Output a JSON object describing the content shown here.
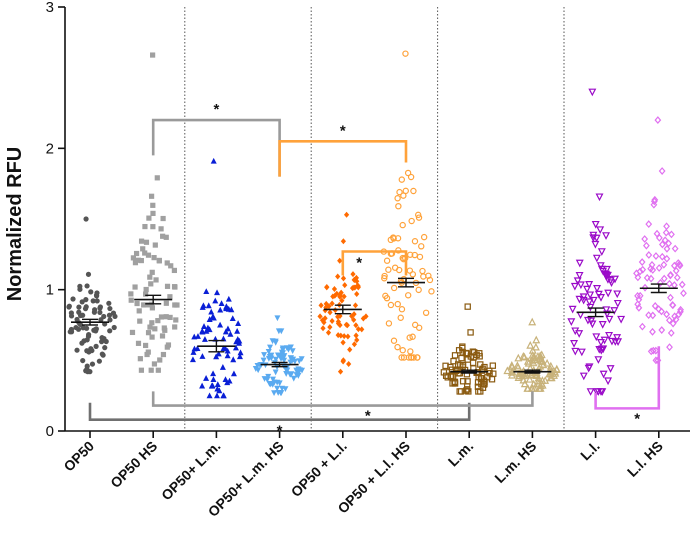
{
  "chart_data": {
    "type": "scatter",
    "title": "",
    "xlabel": "",
    "ylabel": "Normalized RFU",
    "ylim": [
      0,
      3
    ],
    "yticks": [
      "0",
      "1",
      "2",
      "3"
    ],
    "categories": [
      "OP50",
      "OP50 HS",
      "OP50+ L.m.",
      "OP50+ L.m. HS",
      "OP50 + L.l.",
      "OP50 + L.l. HS",
      "L.m.",
      "L.m. HS",
      "L.l.",
      "L.l. HS"
    ],
    "group_separators_after": [
      2,
      4,
      6,
      8
    ],
    "significance_marker": "*",
    "series": [
      {
        "name": "OP50",
        "color": "#555555",
        "marker": "circle-filled",
        "mean": 0.77,
        "sem": 0.02,
        "min": 0.42,
        "max": 1.5,
        "n": 80
      },
      {
        "name": "OP50 HS",
        "color": "#a0a0a0",
        "marker": "square-filled",
        "mean": 0.93,
        "sem": 0.03,
        "min": 0.43,
        "max": 2.66,
        "n": 80
      },
      {
        "name": "OP50+ L.m.",
        "color": "#0a1fd6",
        "marker": "triangle-up-filled",
        "mean": 0.6,
        "sem": 0.04,
        "min": 0.25,
        "max": 1.91,
        "n": 75
      },
      {
        "name": "OP50+ L.m. HS",
        "color": "#5aaaf0",
        "marker": "triangle-down-filled",
        "mean": 0.47,
        "sem": 0.015,
        "min": 0.27,
        "max": 0.8,
        "n": 80
      },
      {
        "name": "OP50 + L.l.",
        "color": "#ff6a00",
        "marker": "diamond-filled",
        "mean": 0.86,
        "sem": 0.03,
        "min": 0.42,
        "max": 1.53,
        "n": 75
      },
      {
        "name": "OP50 + L.l. HS",
        "color": "#ffa23a",
        "marker": "circle-open",
        "mean": 1.05,
        "sem": 0.03,
        "min": 0.52,
        "max": 2.67,
        "n": 75
      },
      {
        "name": "L.m.",
        "color": "#8a5a10",
        "marker": "square-open",
        "mean": 0.42,
        "sem": 0.01,
        "min": 0.28,
        "max": 0.88,
        "n": 80
      },
      {
        "name": "L.m. HS",
        "color": "#c8b27a",
        "marker": "triangle-up-open",
        "mean": 0.42,
        "sem": 0.01,
        "min": 0.3,
        "max": 0.77,
        "n": 90
      },
      {
        "name": "L.l.",
        "color": "#9a0ac8",
        "marker": "triangle-down-open",
        "mean": 0.84,
        "sem": 0.03,
        "min": 0.28,
        "max": 2.4,
        "n": 85
      },
      {
        "name": "L.l. HS",
        "color": "#e070f0",
        "marker": "diamond-open",
        "mean": 1.01,
        "sem": 0.03,
        "min": 0.5,
        "max": 2.2,
        "n": 80
      }
    ],
    "brackets": [
      {
        "from": 1,
        "to": 3,
        "label": "*",
        "color": "#9a9a9a",
        "level": 2.2,
        "ends": [
          1.95,
          1.8
        ]
      },
      {
        "from": 3,
        "to": 5,
        "label": "*",
        "color": "#ffa23a",
        "level": 2.05,
        "ends": [
          1.8,
          1.9
        ]
      },
      {
        "from": 4,
        "to": 5,
        "label": "*",
        "color": "#ffa23a",
        "level": 1.27,
        "ends": [
          1.1,
          1.1
        ]
      },
      {
        "from": 0,
        "to": 6,
        "label": "*",
        "color": "#707070",
        "level": 0.08,
        "ends": [
          0.2,
          0.2
        ]
      },
      {
        "from": 1,
        "to": 7,
        "label": "*",
        "color": "#9a9a9a",
        "level": 0.18,
        "ends": [
          0.28,
          0.28
        ]
      },
      {
        "from": 8,
        "to": 9,
        "label": "*",
        "color": "#e070f0",
        "level": 0.16,
        "ends": [
          0.27,
          0.6
        ]
      }
    ]
  }
}
